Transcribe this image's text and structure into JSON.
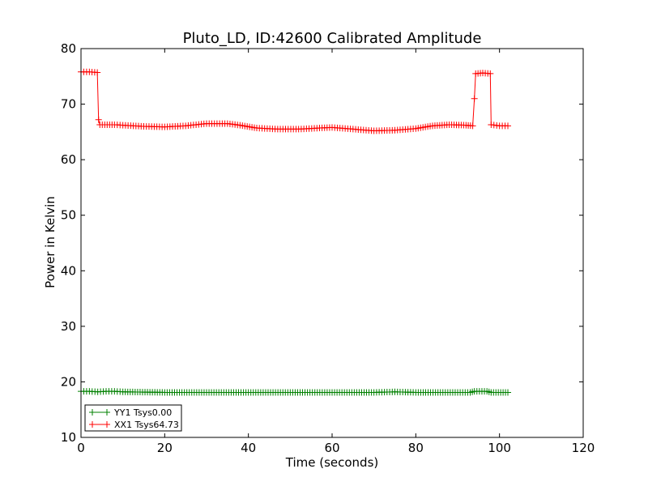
{
  "chart_data": {
    "type": "line",
    "title": "Pluto_LD, ID:42600 Calibrated Amplitude",
    "xlabel": "Time (seconds)",
    "ylabel": "Power in Kelvin",
    "xlim": [
      0,
      120
    ],
    "ylim": [
      10,
      80
    ],
    "xticks": [
      0,
      20,
      40,
      60,
      80,
      100,
      120
    ],
    "yticks": [
      10,
      20,
      30,
      40,
      50,
      60,
      70,
      80
    ],
    "grid": false,
    "legend_position": "lower-left",
    "marker": "plus",
    "series": [
      {
        "name": "YY1 Tsys0.00",
        "color": "#008000",
        "points": [
          [
            0,
            18.3
          ],
          [
            2,
            18.3
          ],
          [
            4,
            18.2
          ],
          [
            6,
            18.3
          ],
          [
            8,
            18.3
          ],
          [
            10,
            18.2
          ],
          [
            20,
            18.1
          ],
          [
            30,
            18.1
          ],
          [
            40,
            18.1
          ],
          [
            50,
            18.1
          ],
          [
            60,
            18.1
          ],
          [
            70,
            18.1
          ],
          [
            75,
            18.2
          ],
          [
            80,
            18.1
          ],
          [
            90,
            18.1
          ],
          [
            93,
            18.1
          ],
          [
            94,
            18.3
          ],
          [
            97,
            18.3
          ],
          [
            98,
            18.1
          ],
          [
            102,
            18.1
          ]
        ]
      },
      {
        "name": "XX1 Tsys64.73",
        "color": "#ff0000",
        "points": [
          [
            0,
            75.8
          ],
          [
            2,
            75.8
          ],
          [
            3.9,
            75.7
          ],
          [
            4.2,
            67.2
          ],
          [
            4.5,
            66.3
          ],
          [
            8,
            66.3
          ],
          [
            10,
            66.2
          ],
          [
            15,
            66.0
          ],
          [
            20,
            65.9
          ],
          [
            25,
            66.1
          ],
          [
            30,
            66.5
          ],
          [
            35,
            66.5
          ],
          [
            38,
            66.2
          ],
          [
            42,
            65.7
          ],
          [
            47,
            65.5
          ],
          [
            52,
            65.5
          ],
          [
            57,
            65.7
          ],
          [
            60,
            65.8
          ],
          [
            65,
            65.5
          ],
          [
            70,
            65.2
          ],
          [
            75,
            65.3
          ],
          [
            80,
            65.6
          ],
          [
            84,
            66.1
          ],
          [
            88,
            66.3
          ],
          [
            92,
            66.2
          ],
          [
            93.6,
            66.1
          ],
          [
            94,
            71.0
          ],
          [
            94.3,
            75.5
          ],
          [
            96,
            75.6
          ],
          [
            97.8,
            75.5
          ],
          [
            98,
            66.3
          ],
          [
            100,
            66.1
          ],
          [
            102,
            66.1
          ]
        ]
      }
    ]
  }
}
